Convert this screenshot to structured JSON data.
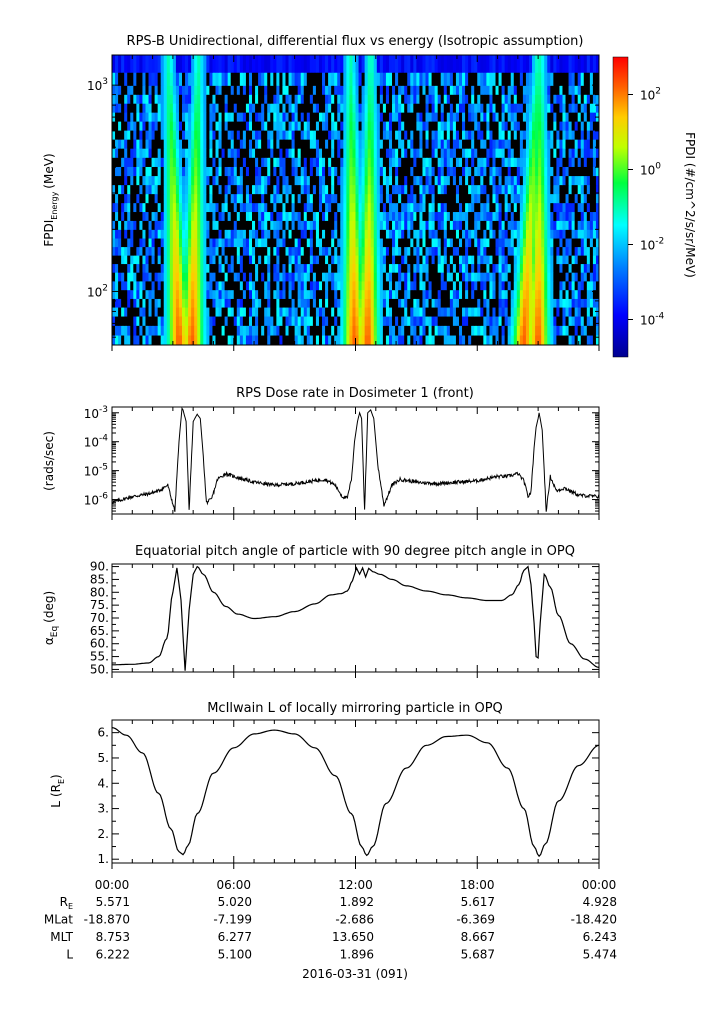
{
  "chart_data": [
    {
      "type": "heatmap",
      "title": "RPS-B  Unidirectional, differential flux vs energy (Isotropic assumption)",
      "ylabel": "FPDI",
      "ylabel_sub": "Energy",
      "ylabel_unit": "(MeV)",
      "ylim": [
        55,
        1400
      ],
      "yscale": "log",
      "y_ticks": [
        {
          "value": 100,
          "base": "10",
          "exp": "2"
        },
        {
          "value": 1000,
          "base": "10",
          "exp": "3"
        }
      ],
      "energy_channels_mev": [
        58,
        65,
        72,
        80,
        88,
        97,
        107,
        118,
        130,
        143,
        157,
        173,
        190,
        210,
        232,
        256,
        283,
        313,
        346,
        383,
        424,
        470,
        520,
        575,
        636,
        703,
        777,
        858,
        948,
        1048,
        1270
      ],
      "peak_hours": [
        {
          "hour_low": 3.3,
          "hour_high": 2.8
        },
        {
          "hour_low": 3.95,
          "hour_high": 4.25
        },
        {
          "hour_low": 11.95,
          "hour_high": 11.75
        },
        {
          "hour_low": 12.6,
          "hour_high": 12.75
        },
        {
          "hour_low": 20.3,
          "hour_high": 21.0
        },
        {
          "hour_low": 21.0,
          "hour_high": 21.1
        }
      ],
      "colorbar": {
        "label": "FPDI (#/cm^2/s/sr/MeV)",
        "range_log10": [
          -5,
          3
        ],
        "scale": "log",
        "colormap": "rainbow",
        "ticks": [
          {
            "value": -4,
            "base": "10",
            "exp": "-4"
          },
          {
            "value": -2,
            "base": "10",
            "exp": "-2"
          },
          {
            "value": 0,
            "base": "10",
            "exp": "0"
          },
          {
            "value": 2,
            "base": "10",
            "exp": "2"
          }
        ]
      }
    },
    {
      "type": "line",
      "title": "RPS  Dose rate in Dosimeter 1 (front)",
      "ylabel": "(rads/sec)",
      "yscale": "log",
      "ylim_log10": [
        -6.5,
        -2.8
      ],
      "y_ticks": [
        {
          "value": -6,
          "base": "10",
          "exp": "-6"
        },
        {
          "value": -5,
          "base": "10",
          "exp": "-5"
        },
        {
          "value": -4,
          "base": "10",
          "exp": "-4"
        },
        {
          "value": -3,
          "base": "10",
          "exp": "-3"
        }
      ],
      "x_hours": [
        0,
        1,
        1.8,
        2.3,
        2.75,
        2.9,
        3.1,
        3.3,
        3.35,
        3.45,
        3.5,
        3.65,
        3.8,
        4.0,
        4.2,
        4.35,
        4.5,
        4.65,
        4.9,
        5.2,
        5.6,
        6,
        7,
        8,
        9,
        10,
        10.5,
        11,
        11.35,
        11.6,
        11.8,
        11.95,
        12.1,
        12.2,
        12.3,
        12.45,
        12.6,
        12.75,
        12.9,
        13.1,
        13.4,
        13.8,
        14.2,
        15,
        16,
        17,
        18,
        19,
        19.5,
        20,
        20.3,
        20.5,
        20.65,
        20.8,
        20.9,
        21.0,
        21.05,
        21.2,
        21.4,
        21.6,
        21.9,
        22.3,
        23,
        24
      ],
      "log10_values": [
        -6.1,
        -5.9,
        -5.8,
        -5.7,
        -5.5,
        -5.9,
        -6.4,
        -4.0,
        -3.6,
        -2.85,
        -2.9,
        -3.3,
        -6.4,
        -3.3,
        -3.05,
        -3.2,
        -4.5,
        -6.1,
        -6.0,
        -5.3,
        -5.1,
        -5.2,
        -5.4,
        -5.5,
        -5.45,
        -5.35,
        -5.3,
        -5.5,
        -5.9,
        -5.95,
        -5.3,
        -4.0,
        -3.3,
        -3.0,
        -3.2,
        -6.4,
        -3.0,
        -2.9,
        -3.2,
        -4.8,
        -6.2,
        -5.5,
        -5.3,
        -5.4,
        -5.45,
        -5.4,
        -5.35,
        -5.2,
        -5.2,
        -5.1,
        -5.35,
        -5.9,
        -5.75,
        -4.2,
        -3.5,
        -3.2,
        -3.0,
        -3.6,
        -6.4,
        -5.2,
        -5.7,
        -5.6,
        -5.85,
        -5.9
      ]
    },
    {
      "type": "line",
      "title": "Equatorial pitch angle of particle with 90 degree pitch angle in OPQ",
      "ylabel": "α",
      "ylabel_sub": "Eq",
      "ylabel_unit": "(deg)",
      "ylim": [
        49,
        91
      ],
      "y_ticks": [
        {
          "value": 50,
          "label": "50."
        },
        {
          "value": 55,
          "label": "55."
        },
        {
          "value": 60,
          "label": "60."
        },
        {
          "value": 65,
          "label": "65."
        },
        {
          "value": 70,
          "label": "70."
        },
        {
          "value": 75,
          "label": "75."
        },
        {
          "value": 80,
          "label": "80."
        },
        {
          "value": 85,
          "label": "85."
        },
        {
          "value": 90,
          "label": "90."
        }
      ],
      "x_hours": [
        0,
        1,
        1.8,
        2.3,
        2.7,
        3.0,
        3.2,
        3.4,
        3.6,
        3.8,
        4.0,
        4.2,
        4.5,
        5.0,
        5.6,
        6.2,
        7,
        8,
        9,
        10,
        10.8,
        11.3,
        11.6,
        11.85,
        12.05,
        12.2,
        12.35,
        12.5,
        12.65,
        12.85,
        13.2,
        13.8,
        14.5,
        15.5,
        16.5,
        17.5,
        18.5,
        19.2,
        19.7,
        20.05,
        20.3,
        20.5,
        20.65,
        20.8,
        20.9,
        21.0,
        21.1,
        21.3,
        21.6,
        22.0,
        22.6,
        23.3,
        24
      ],
      "values": [
        51.8,
        52.0,
        52.5,
        55.0,
        62.0,
        80.0,
        89.5,
        77.0,
        49.5,
        73.0,
        87.0,
        90.0,
        87.0,
        80.0,
        74.5,
        71.5,
        69.8,
        70.5,
        72.5,
        75.5,
        79.0,
        79.5,
        80.5,
        84.5,
        89.5,
        87.0,
        89.5,
        86.0,
        89.3,
        88.0,
        87.0,
        85.0,
        82.5,
        80.5,
        79.0,
        77.8,
        76.8,
        76.8,
        79.0,
        83.0,
        88.5,
        90.0,
        83.0,
        68.0,
        55.0,
        54.5,
        68.0,
        87.0,
        82.0,
        71.0,
        60.0,
        54.0,
        50.8
      ]
    },
    {
      "type": "line",
      "title": "McIlwain L of locally mirroring particle in OPQ",
      "ylabel": "L",
      "ylabel_sub": "E",
      "ylabel_unit_prefix": "(R",
      "ylabel_unit_suffix": ")",
      "ylim": [
        0.85,
        6.5
      ],
      "y_ticks": [
        {
          "value": 1,
          "label": "1."
        },
        {
          "value": 2,
          "label": "2."
        },
        {
          "value": 3,
          "label": "3."
        },
        {
          "value": 4,
          "label": "4."
        },
        {
          "value": 5,
          "label": "5."
        },
        {
          "value": 6,
          "label": "6."
        }
      ],
      "x_hours": [
        0,
        0.7,
        1.5,
        2.3,
        2.9,
        3.3,
        3.5,
        3.75,
        4.2,
        5.0,
        6.0,
        7.0,
        8.0,
        9.0,
        10.0,
        11.0,
        11.8,
        12.3,
        12.55,
        12.85,
        13.5,
        14.5,
        15.5,
        16.5,
        17.5,
        18.5,
        19.5,
        20.3,
        20.8,
        21.05,
        21.35,
        22.0,
        23.0,
        24
      ],
      "values": [
        6.2,
        5.9,
        5.2,
        3.6,
        2.2,
        1.3,
        1.18,
        1.55,
        2.8,
        4.4,
        5.4,
        5.95,
        6.1,
        5.95,
        5.4,
        4.3,
        2.8,
        1.5,
        1.15,
        1.5,
        3.2,
        4.6,
        5.5,
        5.85,
        5.9,
        5.6,
        4.6,
        3.0,
        1.5,
        1.12,
        1.6,
        3.3,
        4.7,
        5.5
      ]
    }
  ],
  "x_ticks": [
    {
      "hour": 0,
      "label": "00:00"
    },
    {
      "hour": 6,
      "label": "06:00"
    },
    {
      "hour": 12,
      "label": "12:00"
    },
    {
      "hour": 18,
      "label": "18:00"
    },
    {
      "hour": 24,
      "label": "00:00"
    }
  ],
  "ephemeris": {
    "rows": [
      {
        "label": "R",
        "label_sub": "E",
        "values": [
          "5.571",
          "5.020",
          "1.892",
          "5.617",
          "4.928"
        ]
      },
      {
        "label": "MLat",
        "label_sub": "",
        "values": [
          "-18.870",
          "-7.199",
          "-2.686",
          "-6.369",
          "-18.420"
        ]
      },
      {
        "label": "MLT",
        "label_sub": "",
        "values": [
          "8.753",
          "6.277",
          "13.650",
          "8.667",
          "6.243"
        ]
      },
      {
        "label": "L",
        "label_sub": "",
        "values": [
          "6.222",
          "5.100",
          "1.896",
          "5.687",
          "5.474"
        ]
      }
    ],
    "date": "2016-03-31 (091)"
  }
}
